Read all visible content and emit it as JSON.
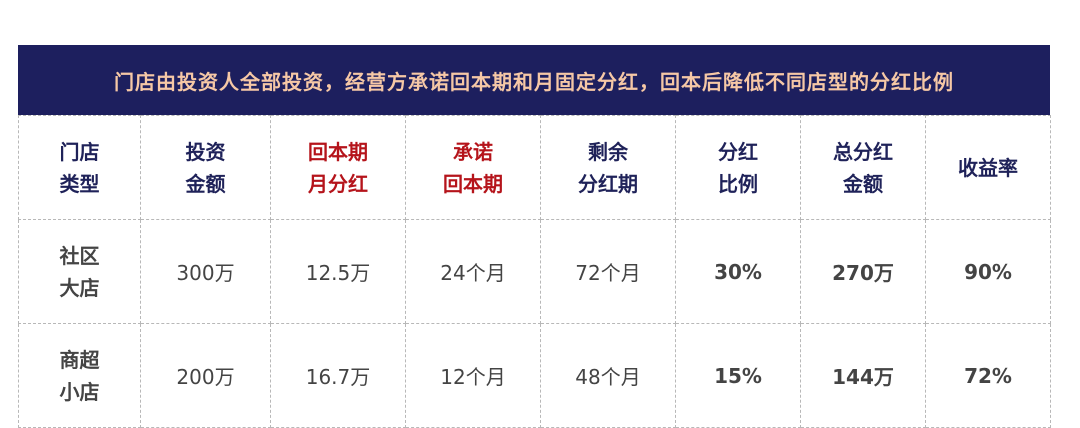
{
  "banner": "门店由投资人全部投资，经营方承诺回本期和月固定分红，回本后降低不同店型的分红比例",
  "headers": [
    {
      "l1": "门店",
      "l2": "类型"
    },
    {
      "l1": "投资",
      "l2": "金额"
    },
    {
      "l1": "回本期",
      "l2": "月分红"
    },
    {
      "l1": "承诺",
      "l2": "回本期"
    },
    {
      "l1": "剩余",
      "l2": "分红期"
    },
    {
      "l1": "分红",
      "l2": "比例"
    },
    {
      "l1": "总分红",
      "l2": "金额"
    },
    {
      "l1": "收益率",
      "l2": ""
    }
  ],
  "rows": [
    {
      "type_l1": "社区",
      "type_l2": "大店",
      "investment": "300万",
      "monthly_dividend": "12.5万",
      "payback": "24个月",
      "remaining": "72个月",
      "ratio": "30%",
      "total": "270万",
      "yield": "90%"
    },
    {
      "type_l1": "商超",
      "type_l2": "小店",
      "investment": "200万",
      "monthly_dividend": "16.7万",
      "payback": "12个月",
      "remaining": "48个月",
      "ratio": "15%",
      "total": "144万",
      "yield": "72%"
    }
  ],
  "colors": {
    "banner_bg": "#1d1f5e",
    "banner_text": "#f6c8a6",
    "header_text": "#1f2259",
    "accent_red": "#c8171f"
  }
}
